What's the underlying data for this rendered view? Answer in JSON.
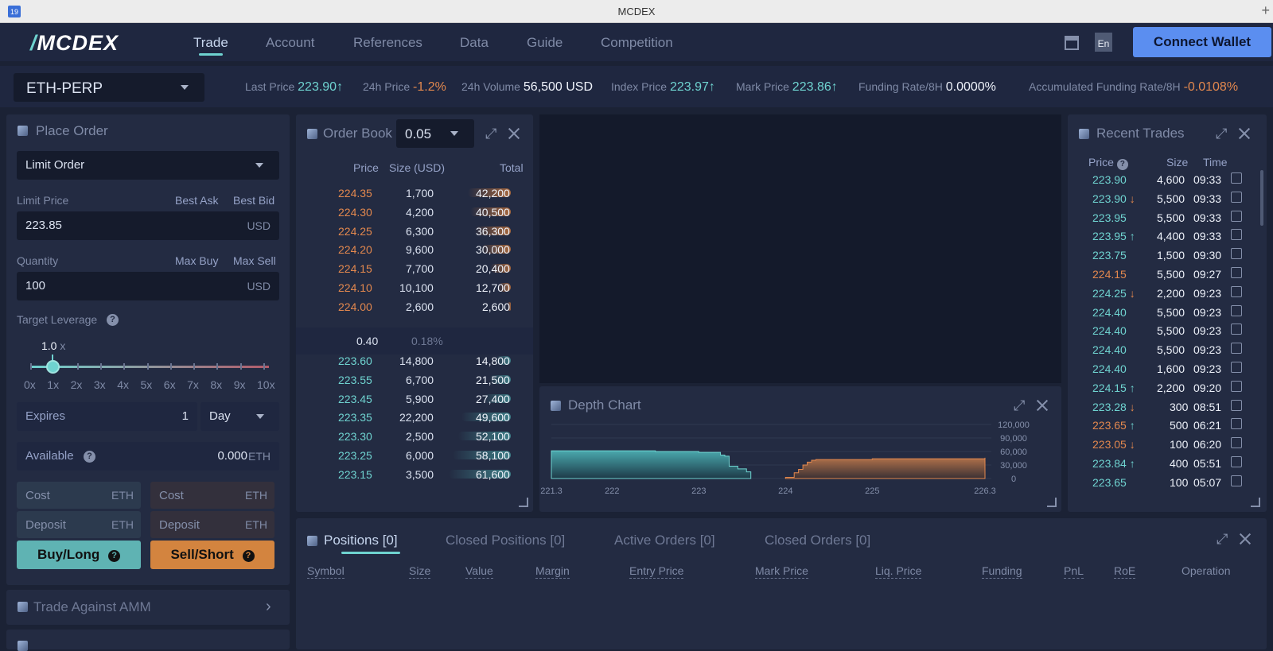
{
  "browser": {
    "date_icon": "19",
    "title": "MCDEX"
  },
  "nav": {
    "logo_text": "MCDEX",
    "items": [
      {
        "label": "Trade",
        "active": true
      },
      {
        "label": "Account"
      },
      {
        "label": "References"
      },
      {
        "label": "Data"
      },
      {
        "label": "Guide"
      },
      {
        "label": "Competition"
      }
    ],
    "lang": "En",
    "connect_label": "Connect Wallet"
  },
  "ticker": {
    "market": "ETH-PERP",
    "last_price_label": "Last Price",
    "last_price": "223.90↑",
    "change_label": "24h Price",
    "change": "-1.2%",
    "volume_label": "24h Volume",
    "volume": "56,500 USD",
    "index_label": "Index Price",
    "index": "223.97↑",
    "mark_label": "Mark Price",
    "mark": "223.86↑",
    "funding_label": "Funding Rate/8H",
    "funding": "0.0000%",
    "acc_funding_label": "Accumulated Funding Rate/8H",
    "acc_funding": "-0.0108%"
  },
  "place_order": {
    "title": "Place Order",
    "order_type": "Limit Order",
    "limit_price_label": "Limit Price",
    "best_ask": "Best Ask",
    "best_bid": "Best Bid",
    "limit_price": "223.85",
    "price_unit": "USD",
    "quantity_label": "Quantity",
    "max_buy": "Max Buy",
    "max_sell": "Max Sell",
    "quantity": "100",
    "qty_unit": "USD",
    "leverage_label": "Target Leverage",
    "leverage_value": "1.0",
    "leverage_x": "x",
    "leverage_ticks": [
      "0x",
      "1x",
      "2x",
      "3x",
      "4x",
      "5x",
      "6x",
      "7x",
      "8x",
      "9x",
      "10x"
    ],
    "expires_label": "Expires",
    "expires_value": "1",
    "expires_unit": "Day",
    "available_label": "Available",
    "available_value": "0.000",
    "available_unit": "ETH",
    "cost_label": "Cost",
    "cost_unit": "ETH",
    "deposit_label": "Deposit",
    "deposit_unit": "ETH",
    "buy_label": "Buy/Long",
    "sell_label": "Sell/Short",
    "amm_label": "Trade Against AMM"
  },
  "order_book": {
    "title": "Order Book",
    "precision": "0.05",
    "headers": {
      "price": "Price",
      "size": "Size (USD)",
      "total": "Total"
    },
    "asks": [
      {
        "price": "224.35",
        "size": "1,700",
        "total": "42,200",
        "depth": 0.69
      },
      {
        "price": "224.30",
        "size": "4,200",
        "total": "40,500",
        "depth": 0.66
      },
      {
        "price": "224.25",
        "size": "6,300",
        "total": "36,300",
        "depth": 0.59
      },
      {
        "price": "224.20",
        "size": "9,600",
        "total": "30,000",
        "depth": 0.49
      },
      {
        "price": "224.15",
        "size": "7,700",
        "total": "20,400",
        "depth": 0.33
      },
      {
        "price": "224.10",
        "size": "10,100",
        "total": "12,700",
        "depth": 0.21
      },
      {
        "price": "224.00",
        "size": "2,600",
        "total": "2,600",
        "depth": 0.04
      }
    ],
    "spread": "0.40",
    "spread_pct": "0.18%",
    "bids": [
      {
        "price": "223.60",
        "size": "14,800",
        "total": "14,800",
        "depth": 0.24
      },
      {
        "price": "223.55",
        "size": "6,700",
        "total": "21,500",
        "depth": 0.35
      },
      {
        "price": "223.45",
        "size": "5,900",
        "total": "27,400",
        "depth": 0.44
      },
      {
        "price": "223.35",
        "size": "22,200",
        "total": "49,600",
        "depth": 0.8
      },
      {
        "price": "223.30",
        "size": "2,500",
        "total": "52,100",
        "depth": 0.85
      },
      {
        "price": "223.25",
        "size": "6,000",
        "total": "58,100",
        "depth": 0.94
      },
      {
        "price": "223.15",
        "size": "3,500",
        "total": "61,600",
        "depth": 1.0
      }
    ]
  },
  "depth_chart": {
    "title": "Depth Chart",
    "x_ticks": [
      "221.3",
      "222",
      "223",
      "224",
      "225",
      "226.3"
    ],
    "y_ticks": [
      "120,000",
      "90,000",
      "60,000",
      "30,000",
      "0"
    ]
  },
  "chart_data": {
    "type": "area",
    "title": "Depth Chart",
    "xlim": [
      221.3,
      226.3
    ],
    "ylim": [
      0,
      120000
    ],
    "series": [
      {
        "name": "",
        "x": [
          221.3,
          222.0,
          222.5,
          223.0,
          223.15,
          223.25,
          223.3,
          223.35,
          223.45,
          223.55,
          223.6
        ],
        "values": [
          61600,
          61600,
          60000,
          58100,
          58100,
          52100,
          49600,
          27400,
          21500,
          14800,
          0
        ]
      },
      {
        "name": "",
        "x": [
          224.0,
          224.1,
          224.15,
          224.2,
          224.25,
          224.3,
          224.35,
          225.0,
          226.3
        ],
        "values": [
          2600,
          12700,
          20400,
          30000,
          36300,
          40500,
          42200,
          44000,
          46000
        ]
      }
    ]
  },
  "recent_trades": {
    "title": "Recent Trades",
    "headers": {
      "price": "Price",
      "size": "Size",
      "time": "Time"
    },
    "rows": [
      {
        "price": "223.90",
        "dir": "",
        "size": "4,600",
        "time": "09:33",
        "color": "cyan"
      },
      {
        "price": "223.90",
        "dir": "↓",
        "size": "5,500",
        "time": "09:33",
        "color": "cyan"
      },
      {
        "price": "223.95",
        "dir": "",
        "size": "5,500",
        "time": "09:33",
        "color": "cyan"
      },
      {
        "price": "223.95",
        "dir": "↑",
        "size": "4,400",
        "time": "09:33",
        "color": "cyan"
      },
      {
        "price": "223.75",
        "dir": "",
        "size": "1,500",
        "time": "09:30",
        "color": "cyan"
      },
      {
        "price": "224.15",
        "dir": "",
        "size": "5,500",
        "time": "09:27",
        "color": "orange"
      },
      {
        "price": "224.25",
        "dir": "↓",
        "size": "2,200",
        "time": "09:23",
        "color": "cyan"
      },
      {
        "price": "224.40",
        "dir": "",
        "size": "5,500",
        "time": "09:23",
        "color": "cyan"
      },
      {
        "price": "224.40",
        "dir": "",
        "size": "5,500",
        "time": "09:23",
        "color": "cyan"
      },
      {
        "price": "224.40",
        "dir": "",
        "size": "5,500",
        "time": "09:23",
        "color": "cyan"
      },
      {
        "price": "224.40",
        "dir": "",
        "size": "1,600",
        "time": "09:23",
        "color": "cyan"
      },
      {
        "price": "224.15",
        "dir": "↑",
        "size": "2,200",
        "time": "09:20",
        "color": "cyan"
      },
      {
        "price": "223.28",
        "dir": "↓",
        "size": "300",
        "time": "08:51",
        "color": "cyan"
      },
      {
        "price": "223.65",
        "dir": "↑",
        "size": "500",
        "time": "06:21",
        "color": "orange"
      },
      {
        "price": "223.05",
        "dir": "↓",
        "size": "100",
        "time": "06:20",
        "color": "orange"
      },
      {
        "price": "223.84",
        "dir": "↑",
        "size": "400",
        "time": "05:51",
        "color": "cyan"
      },
      {
        "price": "223.65",
        "dir": "",
        "size": "100",
        "time": "05:07",
        "color": "cyan"
      }
    ]
  },
  "positions": {
    "tabs": [
      "Positions [0]",
      "Closed Positions [0]",
      "Active Orders [0]",
      "Closed Orders [0]"
    ],
    "columns": [
      "Symbol",
      "Size",
      "Value",
      "Margin",
      "Entry Price",
      "Mark Price",
      "Liq. Price",
      "Funding",
      "PnL",
      "RoE",
      "Operation"
    ]
  },
  "colors": {
    "ask": "#e3884e",
    "bid": "#6fd3d0",
    "buy": "#5fb3b3",
    "sell": "#d3843f",
    "accent": "#5b8ef0"
  }
}
